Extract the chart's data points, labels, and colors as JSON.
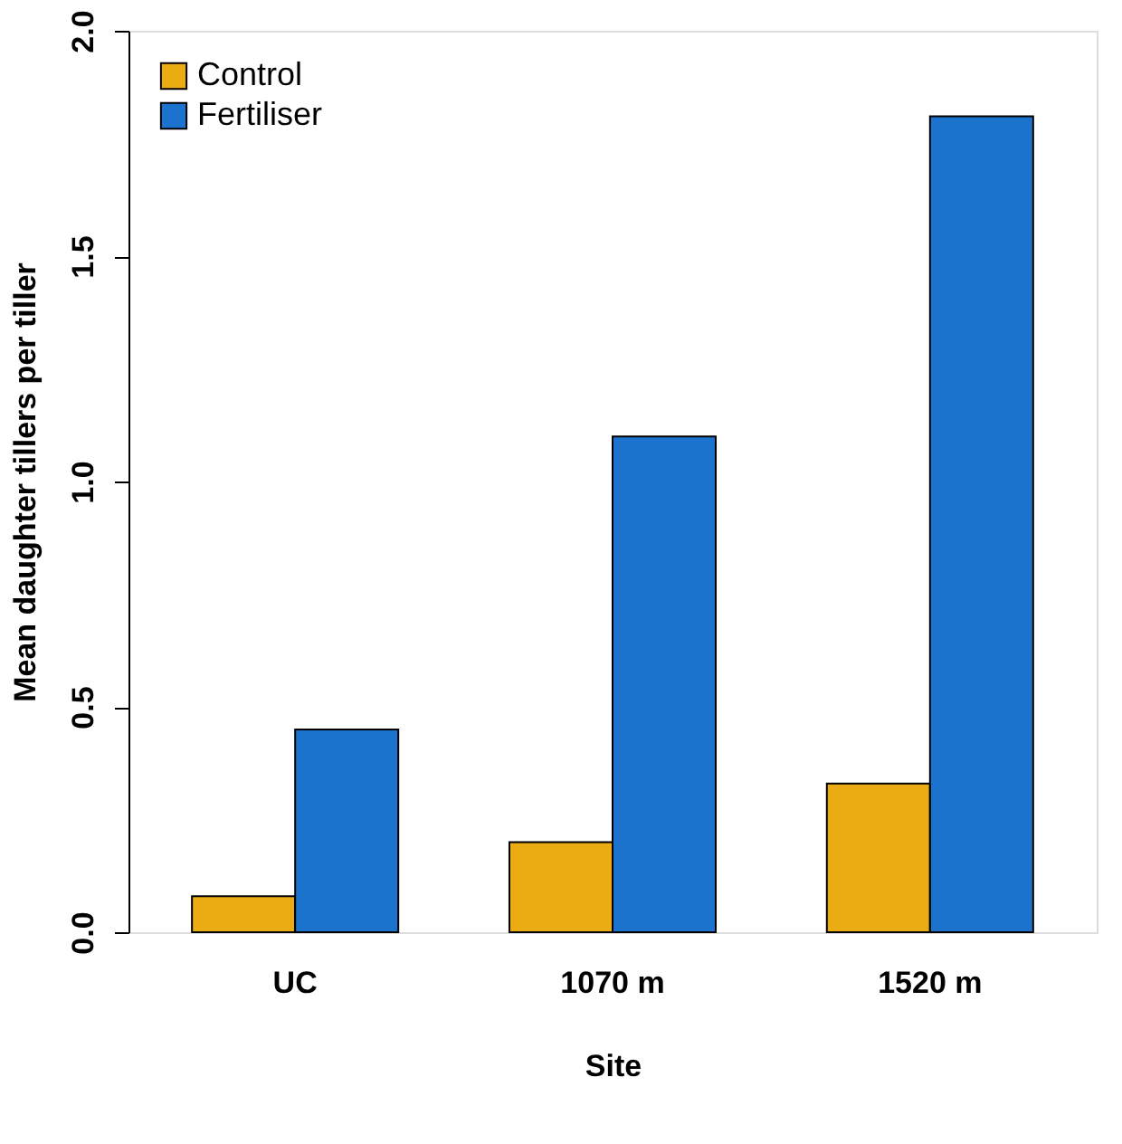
{
  "chart_data": {
    "type": "bar",
    "xlabel": "Site",
    "ylabel": "Mean daughter tillers per tiller",
    "categories": [
      "UC",
      "1070 m",
      "1520 m"
    ],
    "series": [
      {
        "name": "Control",
        "color": "#ebab12",
        "values": [
          0.08,
          0.2,
          0.33
        ]
      },
      {
        "name": "Fertiliser",
        "color": "#1b73cd",
        "values": [
          0.45,
          1.1,
          1.81
        ]
      }
    ],
    "ylim": [
      0,
      2
    ],
    "yticks": [
      {
        "value": 0,
        "label": "0.0"
      },
      0.5,
      {
        "value": 1,
        "label": "1.0"
      },
      1.5,
      {
        "value": 2,
        "label": "2.0"
      }
    ],
    "grid": false,
    "legend": "top left"
  }
}
